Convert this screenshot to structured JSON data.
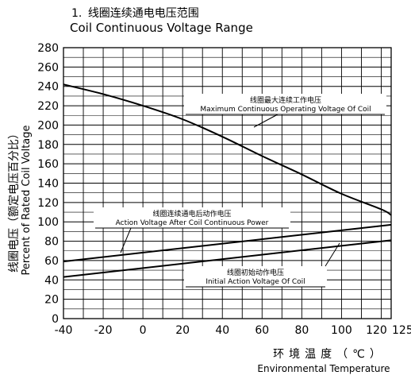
{
  "chart_data": {
    "type": "line",
    "title_number": "1.",
    "title_cn": "线圈连续通电电压范围",
    "title_en": "Coil Continuous Voltage Range",
    "ylabel_cn": "线圈电压（额定电压百分比）",
    "ylabel_en": "Percent of Rated Coil Voltage",
    "xlabel_cn": "环境温度（℃）",
    "xlabel_en": "Environmental Temperature",
    "xlim": [
      -40,
      125
    ],
    "ylim": [
      0,
      280
    ],
    "x_ticks": [
      -40,
      -20,
      0,
      20,
      40,
      60,
      80,
      100,
      120,
      125
    ],
    "y_ticks": [
      0,
      20,
      40,
      60,
      80,
      100,
      120,
      140,
      160,
      180,
      200,
      220,
      240,
      260,
      280
    ],
    "grid": true,
    "series": [
      {
        "name_cn": "线圈最大连续工作电压",
        "name_en": "Maximum Continuous Operating Voltage Of Coil",
        "x": [
          -40,
          -20,
          0,
          20,
          40,
          60,
          80,
          100,
          120,
          125
        ],
        "y": [
          242,
          232,
          220,
          206,
          188,
          168,
          149,
          129,
          113,
          107
        ]
      },
      {
        "name_cn": "线圈连续通电后动作电压",
        "name_en": "Action Voltage After Coil Continuous Power",
        "x": [
          -40,
          125
        ],
        "y": [
          59,
          97
        ]
      },
      {
        "name_cn": "线圈初始动作电压",
        "name_en": "Initial Action Voltage Of Coil",
        "x": [
          -40,
          125
        ],
        "y": [
          43,
          81
        ]
      }
    ]
  }
}
